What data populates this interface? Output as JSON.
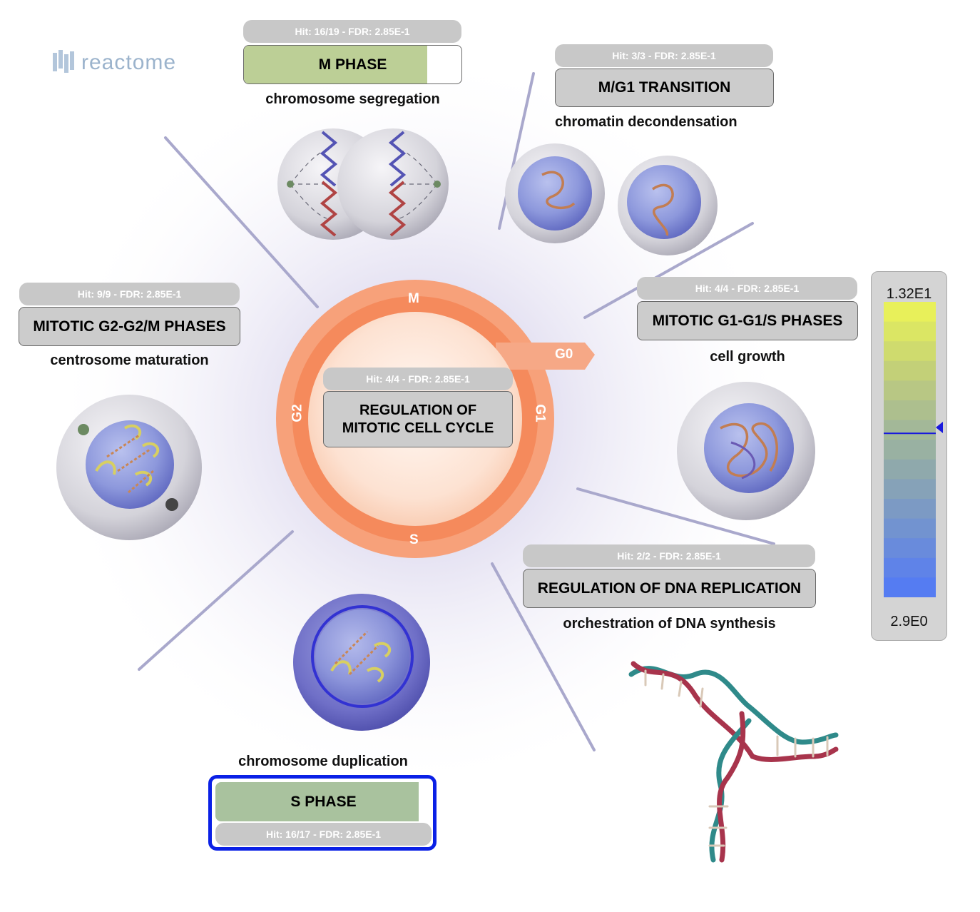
{
  "logo": {
    "text": "reactome"
  },
  "center": {
    "stat": "Hit: 4/4 - FDR: 2.85E-1",
    "label_line1": "REGULATION OF",
    "label_line2": "MITOTIC CELL CYCLE",
    "phases": {
      "m": "M",
      "g1": "G1",
      "s": "S",
      "g2": "G2",
      "g0": "G0"
    }
  },
  "pathways": {
    "m_phase": {
      "stat": "Hit: 16/19 - FDR: 2.85E-1",
      "label": "M PHASE",
      "caption": "chromosome segregation",
      "fill_color": "#bccf96",
      "selected": false
    },
    "m_g1": {
      "stat": "Hit: 3/3 - FDR: 2.85E-1",
      "label": "M/G1 TRANSITION",
      "caption": "chromatin decondensation"
    },
    "g2m": {
      "stat": "Hit: 9/9 - FDR: 2.85E-1",
      "label": "MITOTIC G2-G2/M PHASES",
      "caption": "centrosome maturation"
    },
    "g1s": {
      "stat": "Hit: 4/4 - FDR: 2.85E-1",
      "label": "MITOTIC G1-G1/S PHASES",
      "caption": "cell growth"
    },
    "dna_rep": {
      "stat": "Hit: 2/2 - FDR: 2.85E-1",
      "label": "REGULATION OF DNA REPLICATION",
      "caption": "orchestration of DNA synthesis"
    },
    "s_phase": {
      "stat": "Hit: 16/17 - FDR: 2.85E-1",
      "label": "S PHASE",
      "caption": "chromosome duplication",
      "fill_color": "#a9c29e",
      "selected": true
    }
  },
  "legend": {
    "max": "1.32E1",
    "min": "2.9E0",
    "marker_level": 0.555,
    "colors": [
      "#e8f05a",
      "#dbe664",
      "#cfdb6e",
      "#c3d078",
      "#b8c784",
      "#adbf8e",
      "#a3b898",
      "#99b1a2",
      "#8fa9ac",
      "#86a2b8",
      "#7c9ac4",
      "#7293d0",
      "#698bdc",
      "#5f83e8",
      "#557cf2"
    ]
  },
  "colors": {
    "cycle_orange": "#f47c48",
    "selection_blue": "#0a20e6",
    "marker_blue": "#1a1add"
  }
}
